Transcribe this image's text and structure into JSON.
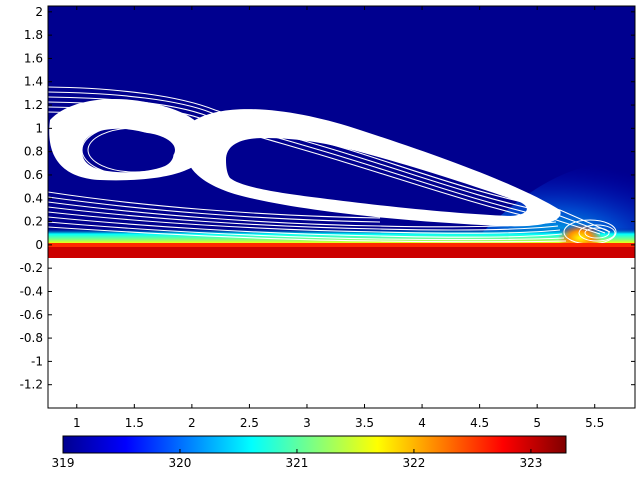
{
  "chart_data": {
    "type": "heatmap",
    "title": "",
    "xlabel": "",
    "ylabel": "",
    "xlim": [
      0.75,
      5.85
    ],
    "ylim": [
      -1.4,
      2.05
    ],
    "xticks": [
      1,
      1.5,
      2,
      2.5,
      3,
      3.5,
      4,
      4.5,
      5,
      5.5
    ],
    "yticks": [
      2,
      1.8,
      1.6,
      1.4,
      1.2,
      1,
      0.8,
      0.6,
      0.4,
      0.2,
      0,
      -0.2,
      -0.4,
      -0.6,
      -0.8,
      -1,
      -1.2
    ],
    "field": {
      "domain_y": [
        -0.1,
        2.05
      ],
      "colormap": "jet",
      "hot_wall_value": 323,
      "ambient_value": 319,
      "streamlines": "white"
    },
    "colorbar": {
      "range": [
        319,
        323.3
      ],
      "ticks": [
        319,
        320,
        321,
        322,
        323
      ]
    }
  }
}
